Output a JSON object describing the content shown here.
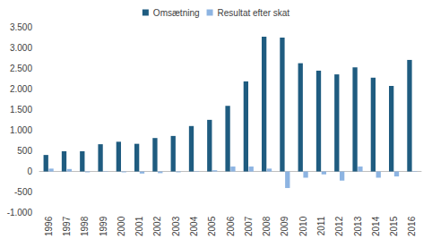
{
  "chart_data": {
    "type": "bar",
    "categories": [
      "1996",
      "1997",
      "1998",
      "1999",
      "2000",
      "2001",
      "2002",
      "2003",
      "2004",
      "2005",
      "2006",
      "2007",
      "2008",
      "2009",
      "2010",
      "2011",
      "2012",
      "2013",
      "2014",
      "2015",
      "2016"
    ],
    "series": [
      {
        "name": "Omsætning",
        "color": "#1F5C80",
        "values": [
          400,
          490,
          490,
          660,
          720,
          670,
          810,
          860,
          1100,
          1250,
          1590,
          2180,
          3260,
          3240,
          2620,
          2440,
          2350,
          2520,
          2270,
          2070,
          2700
        ]
      },
      {
        "name": "Resultat efter skat",
        "color": "#8DB4E2",
        "values": [
          70,
          60,
          -20,
          10,
          -20,
          -50,
          -40,
          -20,
          10,
          30,
          120,
          120,
          70,
          -400,
          -150,
          -70,
          -220,
          120,
          -150,
          -120,
          10
        ]
      }
    ],
    "ylim": [
      -1000,
      3500
    ],
    "yticks": [
      {
        "value": -1000,
        "label": "-1.000"
      },
      -500,
      0,
      500,
      {
        "value": 1000,
        "label": "1.000"
      },
      {
        "value": 1500,
        "label": "1.500"
      },
      {
        "value": 2000,
        "label": "2.000"
      },
      {
        "value": 2500,
        "label": "2.500"
      },
      {
        "value": 3000,
        "label": "3.000"
      },
      {
        "value": 3500,
        "label": "3.500"
      }
    ],
    "grid": false,
    "legend": "top"
  }
}
